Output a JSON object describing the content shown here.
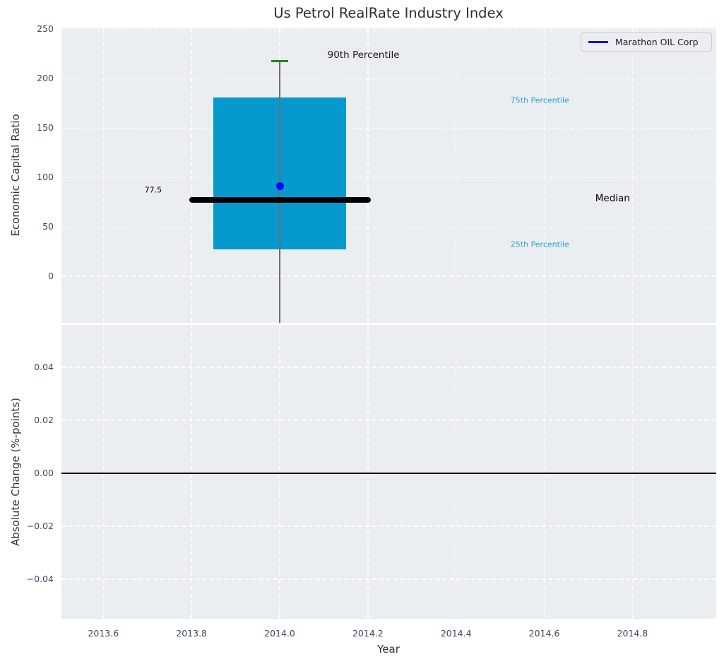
{
  "colors": {
    "figure_bg": "#ffffff",
    "axes_bg": "#ebeef0",
    "grid": "#ffffff",
    "box_fill": "#0699cf",
    "percentile_text": "#2aa2d6",
    "median_line": "#000000",
    "whisker": "#6e6e6e",
    "cap_green": "#1b8a1b",
    "company_blue": "#0a0af0",
    "tick_text": "#3b4a5c",
    "axis_label_text": "#333333",
    "title_text": "#2e2e2e",
    "zero_line": "#000000",
    "legend_bg": "#ecedf3",
    "legend_border": "#c9cad0"
  },
  "chart_data": [
    {
      "type": "boxplot",
      "title": "Us Petrol RealRate Industry Index",
      "xlabel": "Year",
      "ylabel": "Economic Capital Ratio",
      "xlim": [
        2013.505,
        2014.99
      ],
      "ylim": [
        -47,
        251
      ],
      "grid": "white dashed, on",
      "xticks": [
        {
          "value": 2013.6,
          "label": "2013.6"
        },
        {
          "value": 2013.8,
          "label": "2013.8"
        },
        {
          "value": 2014.0,
          "label": "2014.0"
        },
        {
          "value": 2014.2,
          "label": "2014.2"
        },
        {
          "value": 2014.4,
          "label": "2014.4"
        },
        {
          "value": 2014.6,
          "label": "2014.6"
        },
        {
          "value": 2014.8,
          "label": "2014.8"
        }
      ],
      "yticks": [
        {
          "value": 0,
          "label": "0"
        },
        {
          "value": 50,
          "label": "50"
        },
        {
          "value": 100,
          "label": "100"
        },
        {
          "value": 150,
          "label": "150"
        },
        {
          "value": 200,
          "label": "200"
        },
        {
          "value": 250,
          "label": "250"
        }
      ],
      "box": {
        "x_center": 2014.0,
        "x_left": 2013.85,
        "x_right": 2014.15,
        "q1_25th_percentile": 27,
        "q3_75th_percentile": 181,
        "median": 77.5,
        "p90_90th_percentile": 218,
        "whisker_cap_half_width": 0.019,
        "whisker_extends_below_axis": true
      },
      "median_line": {
        "value": 77.5,
        "x_start": 2013.795,
        "x_end": 2014.207
      },
      "company_point": {
        "label": "Marathon OIL Corp",
        "x": 2014.0,
        "y": 91
      },
      "legend": {
        "label": "Marathon OIL Corp",
        "position": "upper right"
      },
      "annotations": [
        {
          "text": "90th Percentile",
          "x": 2014.19,
          "y": 224,
          "color": "#1a1a1a",
          "size": 13.5
        },
        {
          "text": "75th Percentile",
          "x": 2014.59,
          "y": 178,
          "color": "#2aa2d6",
          "size": 11
        },
        {
          "text": "Median",
          "x": 2014.755,
          "y": 79,
          "color": "#000000",
          "size": 13.5
        },
        {
          "text": "25th Percentile",
          "x": 2014.59,
          "y": 32,
          "color": "#2aa2d6",
          "size": 11
        },
        {
          "text": "77.5",
          "x": 2013.713,
          "y": 87,
          "color": "#000000",
          "size": 11
        }
      ]
    },
    {
      "type": "line",
      "xlabel": "Year",
      "ylabel": "Absolute Change (%-points)",
      "xlim": [
        2013.505,
        2014.99
      ],
      "ylim": [
        -0.055,
        0.056
      ],
      "grid": "white dashed, on",
      "xticks": [
        {
          "value": 2013.6,
          "label": "2013.6"
        },
        {
          "value": 2013.8,
          "label": "2013.8"
        },
        {
          "value": 2014.0,
          "label": "2014.0"
        },
        {
          "value": 2014.2,
          "label": "2014.2"
        },
        {
          "value": 2014.4,
          "label": "2014.4"
        },
        {
          "value": 2014.6,
          "label": "2014.6"
        },
        {
          "value": 2014.8,
          "label": "2014.8"
        }
      ],
      "yticks": [
        {
          "value": 0.04,
          "label": "0.04"
        },
        {
          "value": 0.02,
          "label": "0.02"
        },
        {
          "value": 0.0,
          "label": "0.00"
        },
        {
          "value": -0.02,
          "label": "−0.02"
        },
        {
          "value": -0.04,
          "label": "−0.04"
        }
      ],
      "zero_line": {
        "value": 0.0
      },
      "series": [
        {
          "name": "Marathon OIL Corp",
          "x": [],
          "y": [],
          "note": "no non-zero data visible; only the horizontal zero line is drawn"
        }
      ]
    }
  ]
}
